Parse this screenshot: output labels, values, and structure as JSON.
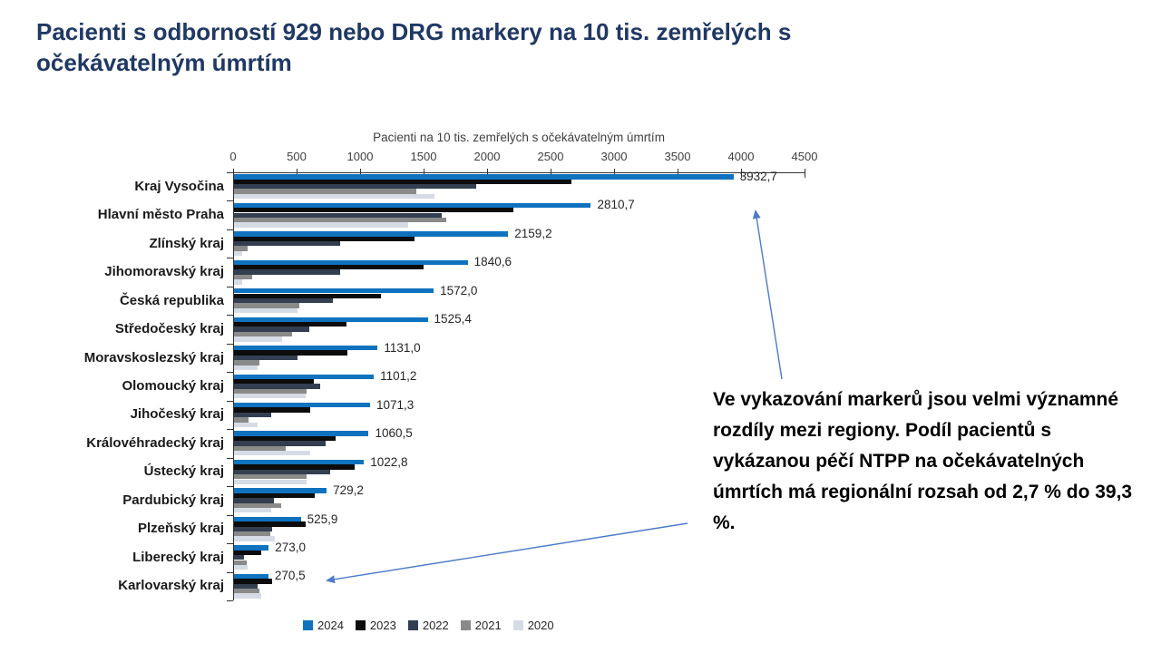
{
  "title": "Pacienti s odborností 929 nebo DRG markery na 10 tis. zemřelých s\nočekávatelným úmrtím",
  "annotation": "Ve vykazování markerů jsou velmi významné rozdíly mezi regiony. Podíl pacientů s vykázanou péčí NTPP na očekávatelných úmrtích má regionální rozsah od 2,7 % do 39,3 %.",
  "colors": {
    "title": "#1F3864",
    "arrow": "#4C7BC8",
    "axis": "#333333",
    "s2024": "#0F72BE",
    "s2023": "#0C0C0C",
    "s2022": "#333F50",
    "s2021": "#8A8A8A",
    "s2020": "#D6DCE5"
  },
  "chart_data": {
    "type": "bar",
    "orientation": "horizontal",
    "title": "Pacienti s odborností 929 nebo DRG markery na 10 tis. zemřelých s očekávatelným úmrtím",
    "xlabel": "Pacienti na 10 tis. zemřelých s očekávatelným úmrtím",
    "xlim": [
      0,
      4500
    ],
    "xticks": [
      0,
      500,
      1000,
      1500,
      2000,
      2500,
      3000,
      3500,
      4000,
      4500
    ],
    "grid": false,
    "legend_position": "bottom",
    "categories": [
      "Kraj Vysočina",
      "Hlavní město Praha",
      "Zlínský kraj",
      "Jihomoravský kraj",
      "Česká republika",
      "Středočeský kraj",
      "Moravskoslezský kraj",
      "Olomoucký kraj",
      "Jihočeský kraj",
      "Královéhradecký kraj",
      "Ústecký kraj",
      "Pardubický kraj",
      "Plzeňský kraj",
      "Liberecký kraj",
      "Karlovarský kraj"
    ],
    "series": [
      {
        "name": "2024",
        "color": "#0F72BE",
        "values": [
          3932.7,
          2810.7,
          2159.2,
          1840.6,
          1572.0,
          1525.4,
          1131.0,
          1101.2,
          1071.3,
          1060.5,
          1022.8,
          729.2,
          525.9,
          273.0,
          270.5
        ],
        "labels": [
          "3932,7",
          "2810,7",
          "2159,2",
          "1840,6",
          "1572,0",
          "1525,4",
          "1131,0",
          "1101,2",
          "1071,3",
          "1060,5",
          "1022,8",
          "729,2",
          "525,9",
          "273,0",
          "270,5"
        ]
      },
      {
        "name": "2023",
        "color": "#0C0C0C",
        "values": [
          2657,
          2201,
          1424,
          1490,
          1157,
          884,
          893,
          627,
          599,
          801,
          953,
          639,
          563,
          212,
          301
        ]
      },
      {
        "name": "2022",
        "color": "#333F50",
        "values": [
          1905,
          1635,
          834,
          839,
          777,
          592,
          501,
          682,
          290,
          722,
          758,
          311,
          301,
          81,
          187
        ]
      },
      {
        "name": "2021",
        "color": "#8A8A8A",
        "values": [
          1438,
          1672,
          105,
          140,
          515,
          454,
          200,
          572,
          112,
          406,
          572,
          373,
          283,
          98,
          200
        ]
      },
      {
        "name": "2020",
        "color": "#D6DCE5",
        "values": [
          1582,
          1371,
          64,
          64,
          501,
          378,
          187,
          563,
          187,
          597,
          572,
          294,
          319,
          105,
          216
        ]
      }
    ]
  }
}
